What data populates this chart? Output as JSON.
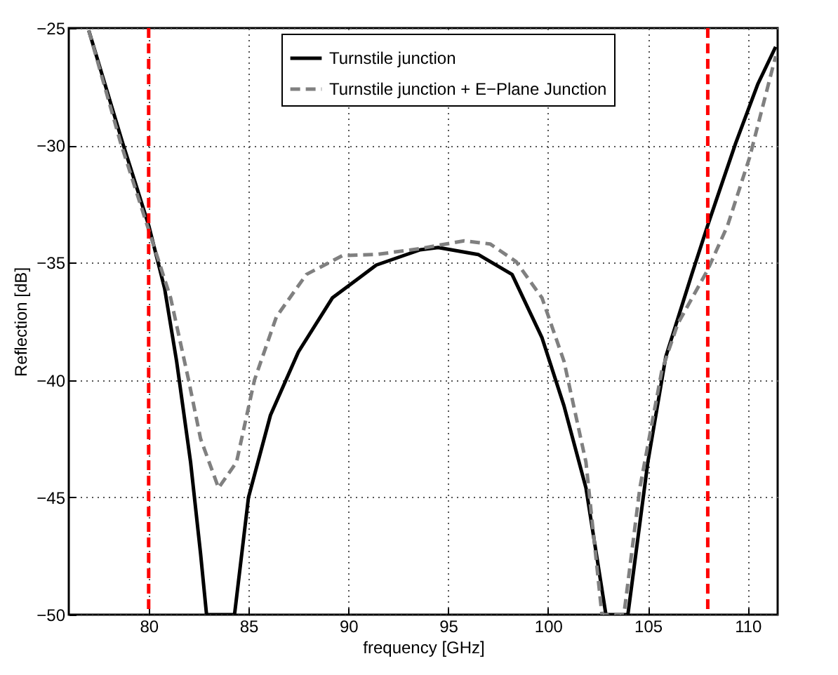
{
  "chart_data": {
    "type": "line",
    "xlabel": "frequency [GHz]",
    "ylabel": "Reflection [dB]",
    "xlim": [
      76,
      111.5
    ],
    "ylim": [
      -50,
      -25
    ],
    "xticks": [
      80,
      85,
      90,
      95,
      100,
      105,
      110
    ],
    "yticks": [
      -50,
      -45,
      -40,
      -35,
      -30,
      -25
    ],
    "grid": true,
    "legend": "top",
    "marker": "none",
    "series": [
      {
        "name": "Turnstile junction",
        "color": "#000000",
        "line_style": "solid",
        "x": [
          77.0,
          78.7,
          80.0,
          80.8,
          81.4,
          82.1,
          82.6,
          82.9,
          84.3,
          85.0,
          86.1,
          87.5,
          89.2,
          91.4,
          93.6,
          94.5,
          96.5,
          98.2,
          99.7,
          100.8,
          101.9,
          102.9,
          104.0,
          105.0,
          105.9,
          107.2,
          108.0,
          109.4,
          110.5,
          111.4
        ],
        "values": [
          -25.1,
          -29.9,
          -33.4,
          -36.1,
          -39.2,
          -43.5,
          -47.4,
          -50,
          -50,
          -45.0,
          -41.5,
          -38.8,
          -36.5,
          -35.1,
          -34.45,
          -34.35,
          -34.65,
          -35.5,
          -38.2,
          -41.1,
          -44.6,
          -50,
          -50,
          -43.5,
          -39.0,
          -35.5,
          -33.4,
          -29.9,
          -27.4,
          -25.8
        ]
      },
      {
        "name": "Turnstile junction + E−Plane Junction",
        "color": "#808080",
        "line_style": "dashed",
        "x": [
          77.0,
          78.6,
          80.0,
          81.1,
          82.0,
          82.6,
          83.5,
          84.4,
          85.3,
          86.4,
          87.9,
          89.7,
          91.4,
          93.6,
          94.5,
          95.8,
          97.1,
          98.4,
          99.7,
          100.8,
          101.9,
          102.7,
          103.8,
          104.6,
          105.7,
          106.5,
          108.0,
          109.0,
          110.1,
          111.4
        ],
        "values": [
          -25.1,
          -29.9,
          -33.6,
          -36.5,
          -40.0,
          -42.5,
          -44.6,
          -43.5,
          -40.0,
          -37.3,
          -35.5,
          -34.7,
          -34.65,
          -34.4,
          -34.26,
          -34.07,
          -34.2,
          -34.95,
          -36.5,
          -39.2,
          -43.5,
          -50,
          -50,
          -44.6,
          -39.6,
          -37.6,
          -35.3,
          -33.4,
          -30.5,
          -26.2
        ]
      }
    ],
    "ref_lines": [
      {
        "axis": "x",
        "value": 80,
        "color": "#ff0000",
        "line_style": "dashed"
      },
      {
        "axis": "x",
        "value": 108,
        "color": "#ff0000",
        "line_style": "dashed"
      }
    ]
  }
}
